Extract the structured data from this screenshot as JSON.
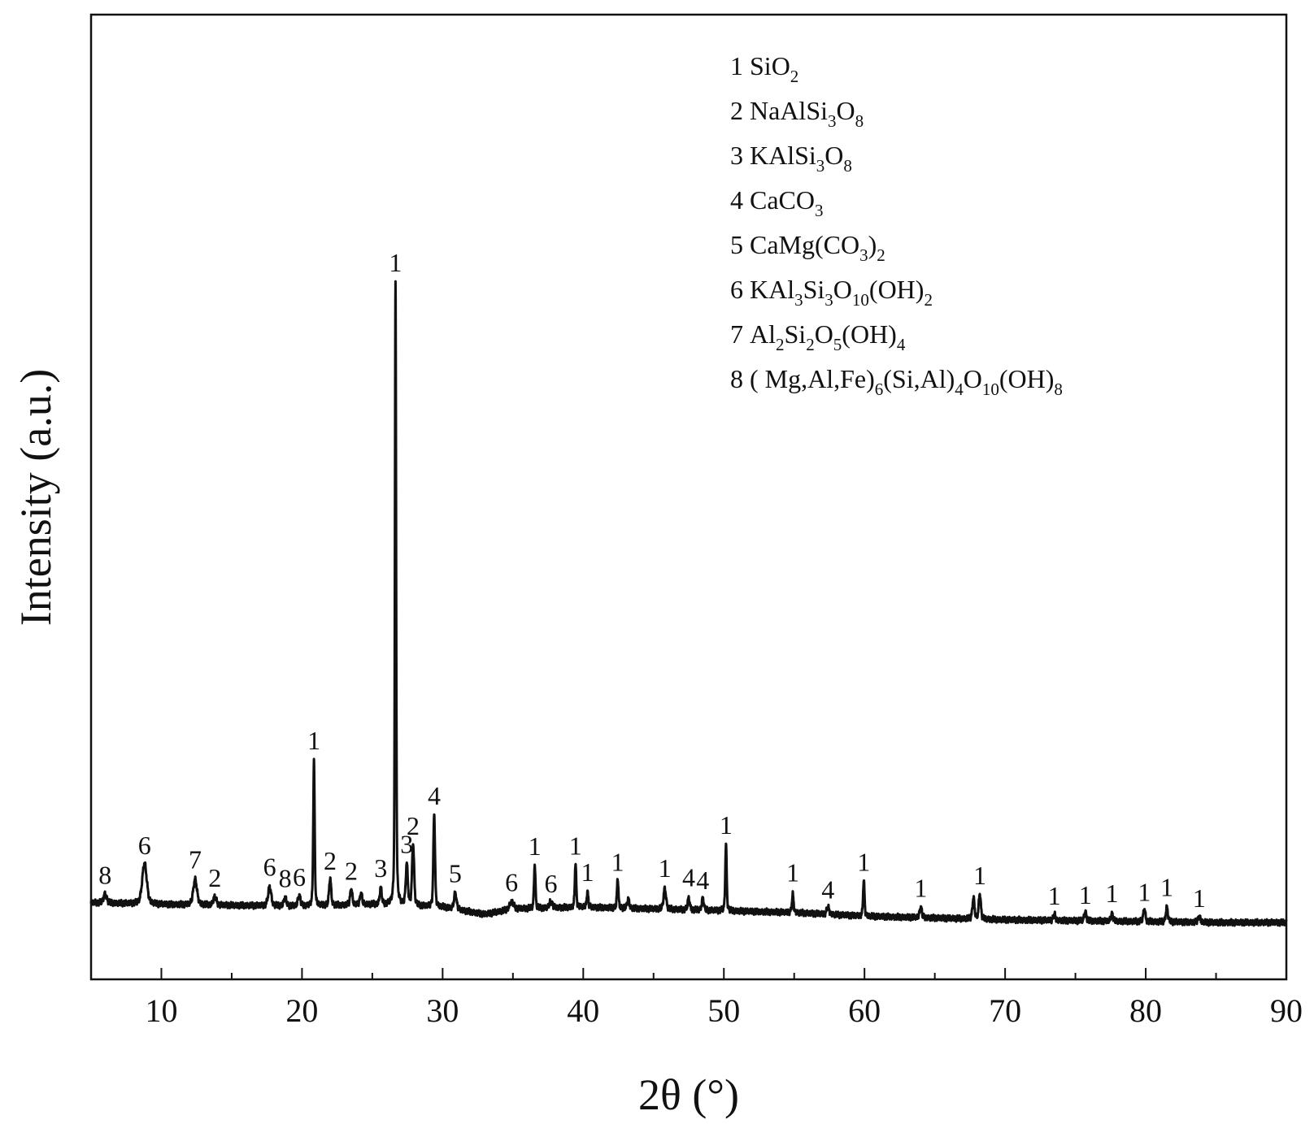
{
  "chart_data": {
    "type": "line",
    "title": "",
    "xlabel": "2θ (°)",
    "ylabel": "Intensity (a.u.)",
    "xlim": [
      5,
      90
    ],
    "ylim": [
      0,
      100
    ],
    "xticks": [
      10,
      20,
      30,
      40,
      50,
      60,
      70,
      80,
      90
    ],
    "yticks": [],
    "grid": false,
    "legend_position": "top-right",
    "legend": [
      {
        "number": "1",
        "formula": "SiO2",
        "parts": [
          {
            "t": "SiO"
          },
          {
            "s": "2"
          }
        ]
      },
      {
        "number": "2",
        "formula": "NaAlSi3O8",
        "parts": [
          {
            "t": "NaAlSi"
          },
          {
            "s": "3"
          },
          {
            "t": "O"
          },
          {
            "s": "8"
          }
        ]
      },
      {
        "number": "3",
        "formula": "KAlSi3O8",
        "parts": [
          {
            "t": "KAlSi"
          },
          {
            "s": "3"
          },
          {
            "t": "O"
          },
          {
            "s": "8"
          }
        ]
      },
      {
        "number": "4",
        "formula": "CaCO3",
        "parts": [
          {
            "t": "CaCO"
          },
          {
            "s": "3"
          }
        ]
      },
      {
        "number": "5",
        "formula": "CaMg(CO3)2",
        "parts": [
          {
            "t": "CaMg(CO"
          },
          {
            "s": "3"
          },
          {
            "t": ")"
          },
          {
            "s": "2"
          }
        ]
      },
      {
        "number": "6",
        "formula": "KAl3Si3O10(OH)2",
        "parts": [
          {
            "t": "KAl"
          },
          {
            "s": "3"
          },
          {
            "t": "Si"
          },
          {
            "s": "3"
          },
          {
            "t": "O"
          },
          {
            "s": "10"
          },
          {
            "t": "(OH)"
          },
          {
            "s": "2"
          }
        ]
      },
      {
        "number": "7",
        "formula": "Al2Si2O5(OH)4",
        "parts": [
          {
            "t": "Al"
          },
          {
            "s": "2"
          },
          {
            "t": "Si"
          },
          {
            "s": "2"
          },
          {
            "t": "O"
          },
          {
            "s": "5"
          },
          {
            "t": "(OH)"
          },
          {
            "s": "4"
          }
        ]
      },
      {
        "number": "8",
        "formula": "( Mg,Al,Fe)6(Si,Al)4O10(OH)8",
        "parts": [
          {
            "t": "( Mg,Al,Fe)"
          },
          {
            "s": "6"
          },
          {
            "t": "(Si,Al)"
          },
          {
            "s": "4"
          },
          {
            "t": "O"
          },
          {
            "s": "10"
          },
          {
            "t": "(OH)"
          },
          {
            "s": "8"
          }
        ]
      }
    ],
    "baseline": [
      [
        5,
        8.5
      ],
      [
        10,
        8.3
      ],
      [
        15,
        8.2
      ],
      [
        20,
        8.1
      ],
      [
        25,
        8.3
      ],
      [
        30,
        8.0
      ],
      [
        33,
        7.2
      ],
      [
        35,
        7.8
      ],
      [
        40,
        8.0
      ],
      [
        45,
        7.8
      ],
      [
        50,
        7.6
      ],
      [
        55,
        7.4
      ],
      [
        60,
        7.0
      ],
      [
        65,
        6.8
      ],
      [
        70,
        6.6
      ],
      [
        75,
        6.5
      ],
      [
        80,
        6.4
      ],
      [
        85,
        6.3
      ],
      [
        90,
        6.3
      ]
    ],
    "peaks": [
      {
        "x": 6.0,
        "height": 1.0,
        "width": 0.15,
        "label": "8"
      },
      {
        "x": 8.8,
        "height": 4.5,
        "width": 0.22,
        "label": "6"
      },
      {
        "x": 12.4,
        "height": 2.8,
        "width": 0.18,
        "label": "7"
      },
      {
        "x": 13.8,
        "height": 0.9,
        "width": 0.15,
        "label": "2"
      },
      {
        "x": 17.7,
        "height": 2.1,
        "width": 0.15,
        "label": "6"
      },
      {
        "x": 18.8,
        "height": 0.9,
        "width": 0.12,
        "label": "8"
      },
      {
        "x": 19.8,
        "height": 1.2,
        "width": 0.12,
        "label": "6"
      },
      {
        "x": 20.85,
        "height": 16.0,
        "width": 0.07,
        "label": "1"
      },
      {
        "x": 22.0,
        "height": 3.0,
        "width": 0.1,
        "label": "2"
      },
      {
        "x": 23.5,
        "height": 1.8,
        "width": 0.1,
        "label": "2"
      },
      {
        "x": 24.2,
        "height": 1.3,
        "width": 0.1,
        "label": ""
      },
      {
        "x": 25.6,
        "height": 1.8,
        "width": 0.1,
        "label": "3"
      },
      {
        "x": 26.65,
        "height": 69.0,
        "width": 0.06,
        "label": "1"
      },
      {
        "x": 27.45,
        "height": 4.5,
        "width": 0.1,
        "label": "3"
      },
      {
        "x": 27.9,
        "height": 6.8,
        "width": 0.1,
        "label": "2"
      },
      {
        "x": 29.4,
        "height": 10.3,
        "width": 0.08,
        "label": "4"
      },
      {
        "x": 30.9,
        "height": 1.8,
        "width": 0.12,
        "label": "5"
      },
      {
        "x": 34.9,
        "height": 0.8,
        "width": 0.2,
        "label": "6"
      },
      {
        "x": 36.55,
        "height": 4.9,
        "width": 0.07,
        "label": "1"
      },
      {
        "x": 37.7,
        "height": 0.7,
        "width": 0.15,
        "label": "6"
      },
      {
        "x": 39.45,
        "height": 4.9,
        "width": 0.07,
        "label": "1"
      },
      {
        "x": 40.3,
        "height": 1.8,
        "width": 0.07,
        "label": "1"
      },
      {
        "x": 42.45,
        "height": 3.3,
        "width": 0.07,
        "label": "1"
      },
      {
        "x": 43.2,
        "height": 1.0,
        "width": 0.1,
        "label": ""
      },
      {
        "x": 45.8,
        "height": 2.3,
        "width": 0.12,
        "label": "1"
      },
      {
        "x": 47.5,
        "height": 1.3,
        "width": 0.1,
        "label": "4"
      },
      {
        "x": 48.5,
        "height": 1.3,
        "width": 0.1,
        "label": "4"
      },
      {
        "x": 50.15,
        "height": 7.3,
        "width": 0.07,
        "label": "1"
      },
      {
        "x": 54.9,
        "height": 2.0,
        "width": 0.08,
        "label": "1"
      },
      {
        "x": 57.4,
        "height": 0.8,
        "width": 0.12,
        "label": "4"
      },
      {
        "x": 59.95,
        "height": 4.0,
        "width": 0.07,
        "label": "1"
      },
      {
        "x": 64.0,
        "height": 1.2,
        "width": 0.1,
        "label": "1"
      },
      {
        "x": 67.75,
        "height": 2.3,
        "width": 0.1,
        "label": ""
      },
      {
        "x": 68.2,
        "height": 2.8,
        "width": 0.1,
        "label": "1"
      },
      {
        "x": 73.5,
        "height": 0.7,
        "width": 0.1,
        "label": "1"
      },
      {
        "x": 75.7,
        "height": 1.0,
        "width": 0.1,
        "label": "1"
      },
      {
        "x": 77.6,
        "height": 0.8,
        "width": 0.1,
        "label": "1"
      },
      {
        "x": 79.9,
        "height": 1.4,
        "width": 0.1,
        "label": "1"
      },
      {
        "x": 81.5,
        "height": 1.6,
        "width": 0.1,
        "label": "1"
      },
      {
        "x": 83.8,
        "height": 0.7,
        "width": 0.1,
        "label": "1"
      }
    ]
  }
}
